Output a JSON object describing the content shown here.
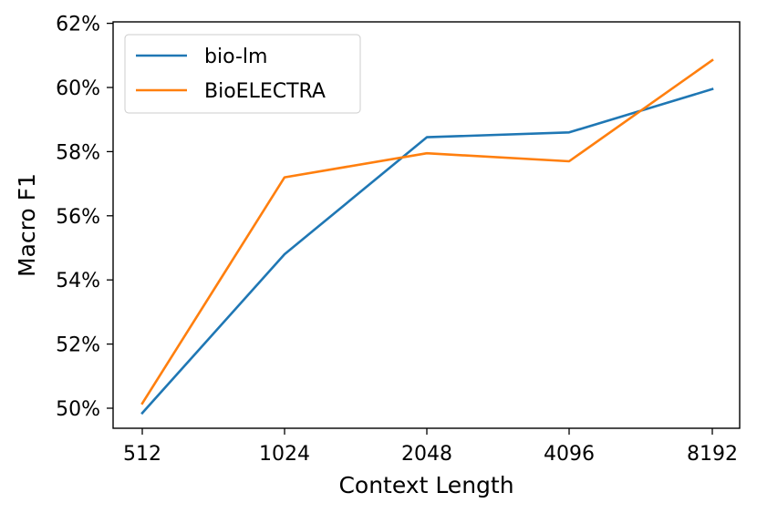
{
  "chart_data": {
    "type": "line",
    "title": "",
    "xlabel": "Context Length",
    "ylabel": "Macro F1",
    "categories": [
      "512",
      "1024",
      "2048",
      "4096",
      "8192"
    ],
    "x_scale": "log2",
    "ylim": [
      49.4,
      62.0
    ],
    "yticks": [
      50,
      52,
      54,
      56,
      58,
      60,
      62
    ],
    "ytick_labels": [
      "50%",
      "52%",
      "54%",
      "56%",
      "58%",
      "60%",
      "62%"
    ],
    "grid": false,
    "legend_position": "top-left",
    "series": [
      {
        "name": "bio-lm",
        "color": "#1f77b4",
        "values": [
          49.85,
          54.8,
          58.45,
          58.6,
          59.95
        ]
      },
      {
        "name": "BioELECTRA",
        "color": "#ff7f0e",
        "values": [
          50.15,
          57.2,
          57.95,
          57.7,
          60.85
        ]
      }
    ]
  }
}
